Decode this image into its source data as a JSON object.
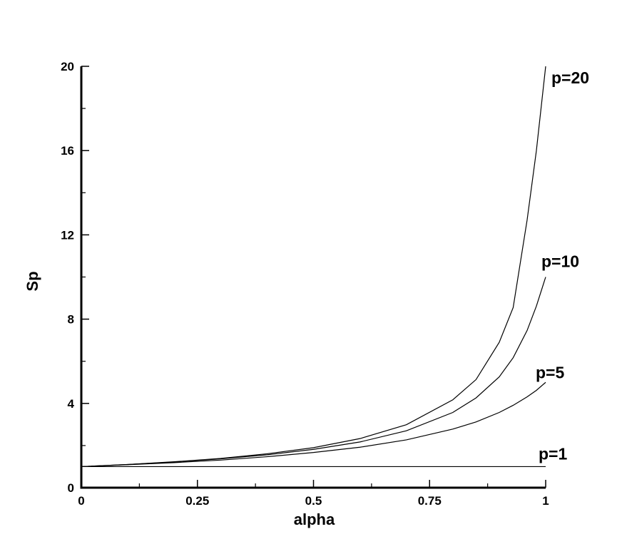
{
  "chart_data": {
    "type": "line",
    "title": "",
    "xlabel": "alpha",
    "ylabel": "Sp",
    "xlim": [
      0,
      1
    ],
    "ylim": [
      0,
      20
    ],
    "x_ticks": [
      0,
      0.25,
      0.5,
      0.75,
      1
    ],
    "x_tick_labels": [
      "0",
      "0.25",
      "0.5",
      "0.75",
      "1"
    ],
    "y_ticks": [
      0,
      4,
      8,
      12,
      16,
      20
    ],
    "y_tick_labels": [
      "0",
      "4",
      "8",
      "12",
      "16",
      "20"
    ],
    "x_minor_step": 0.125,
    "y_minor_step": 2,
    "grid": false,
    "line_color": "#000000",
    "series": [
      {
        "name": "p=1",
        "x": [
          0,
          0.1,
          0.2,
          0.3,
          0.4,
          0.5,
          0.6,
          0.7,
          0.8,
          0.85,
          0.9,
          0.93,
          0.96,
          0.98,
          1
        ],
        "y": [
          1,
          1,
          1,
          1,
          1,
          1,
          1,
          1,
          1,
          1,
          1,
          1,
          1,
          1,
          1
        ]
      },
      {
        "name": "p=5",
        "x": [
          0,
          0.1,
          0.2,
          0.3,
          0.4,
          0.5,
          0.6,
          0.7,
          0.8,
          0.85,
          0.9,
          0.93,
          0.96,
          0.98,
          1
        ],
        "y": [
          1,
          1.09,
          1.19,
          1.31,
          1.47,
          1.67,
          1.92,
          2.27,
          2.78,
          3.12,
          3.57,
          3.91,
          4.31,
          4.62,
          5
        ]
      },
      {
        "name": "p=10",
        "x": [
          0,
          0.1,
          0.2,
          0.3,
          0.4,
          0.5,
          0.6,
          0.7,
          0.8,
          0.85,
          0.9,
          0.93,
          0.96,
          0.98,
          1
        ],
        "y": [
          1,
          1.1,
          1.22,
          1.37,
          1.56,
          1.82,
          2.17,
          2.7,
          3.57,
          4.26,
          5.26,
          6.17,
          7.46,
          8.62,
          10
        ]
      },
      {
        "name": "p=20",
        "x": [
          0,
          0.1,
          0.2,
          0.3,
          0.4,
          0.5,
          0.6,
          0.7,
          0.8,
          0.85,
          0.9,
          0.93,
          0.96,
          0.98,
          1
        ],
        "y": [
          1,
          1.1,
          1.23,
          1.39,
          1.61,
          1.9,
          2.33,
          2.99,
          4.17,
          5.13,
          6.9,
          8.55,
          12.7,
          16,
          20
        ]
      }
    ]
  }
}
